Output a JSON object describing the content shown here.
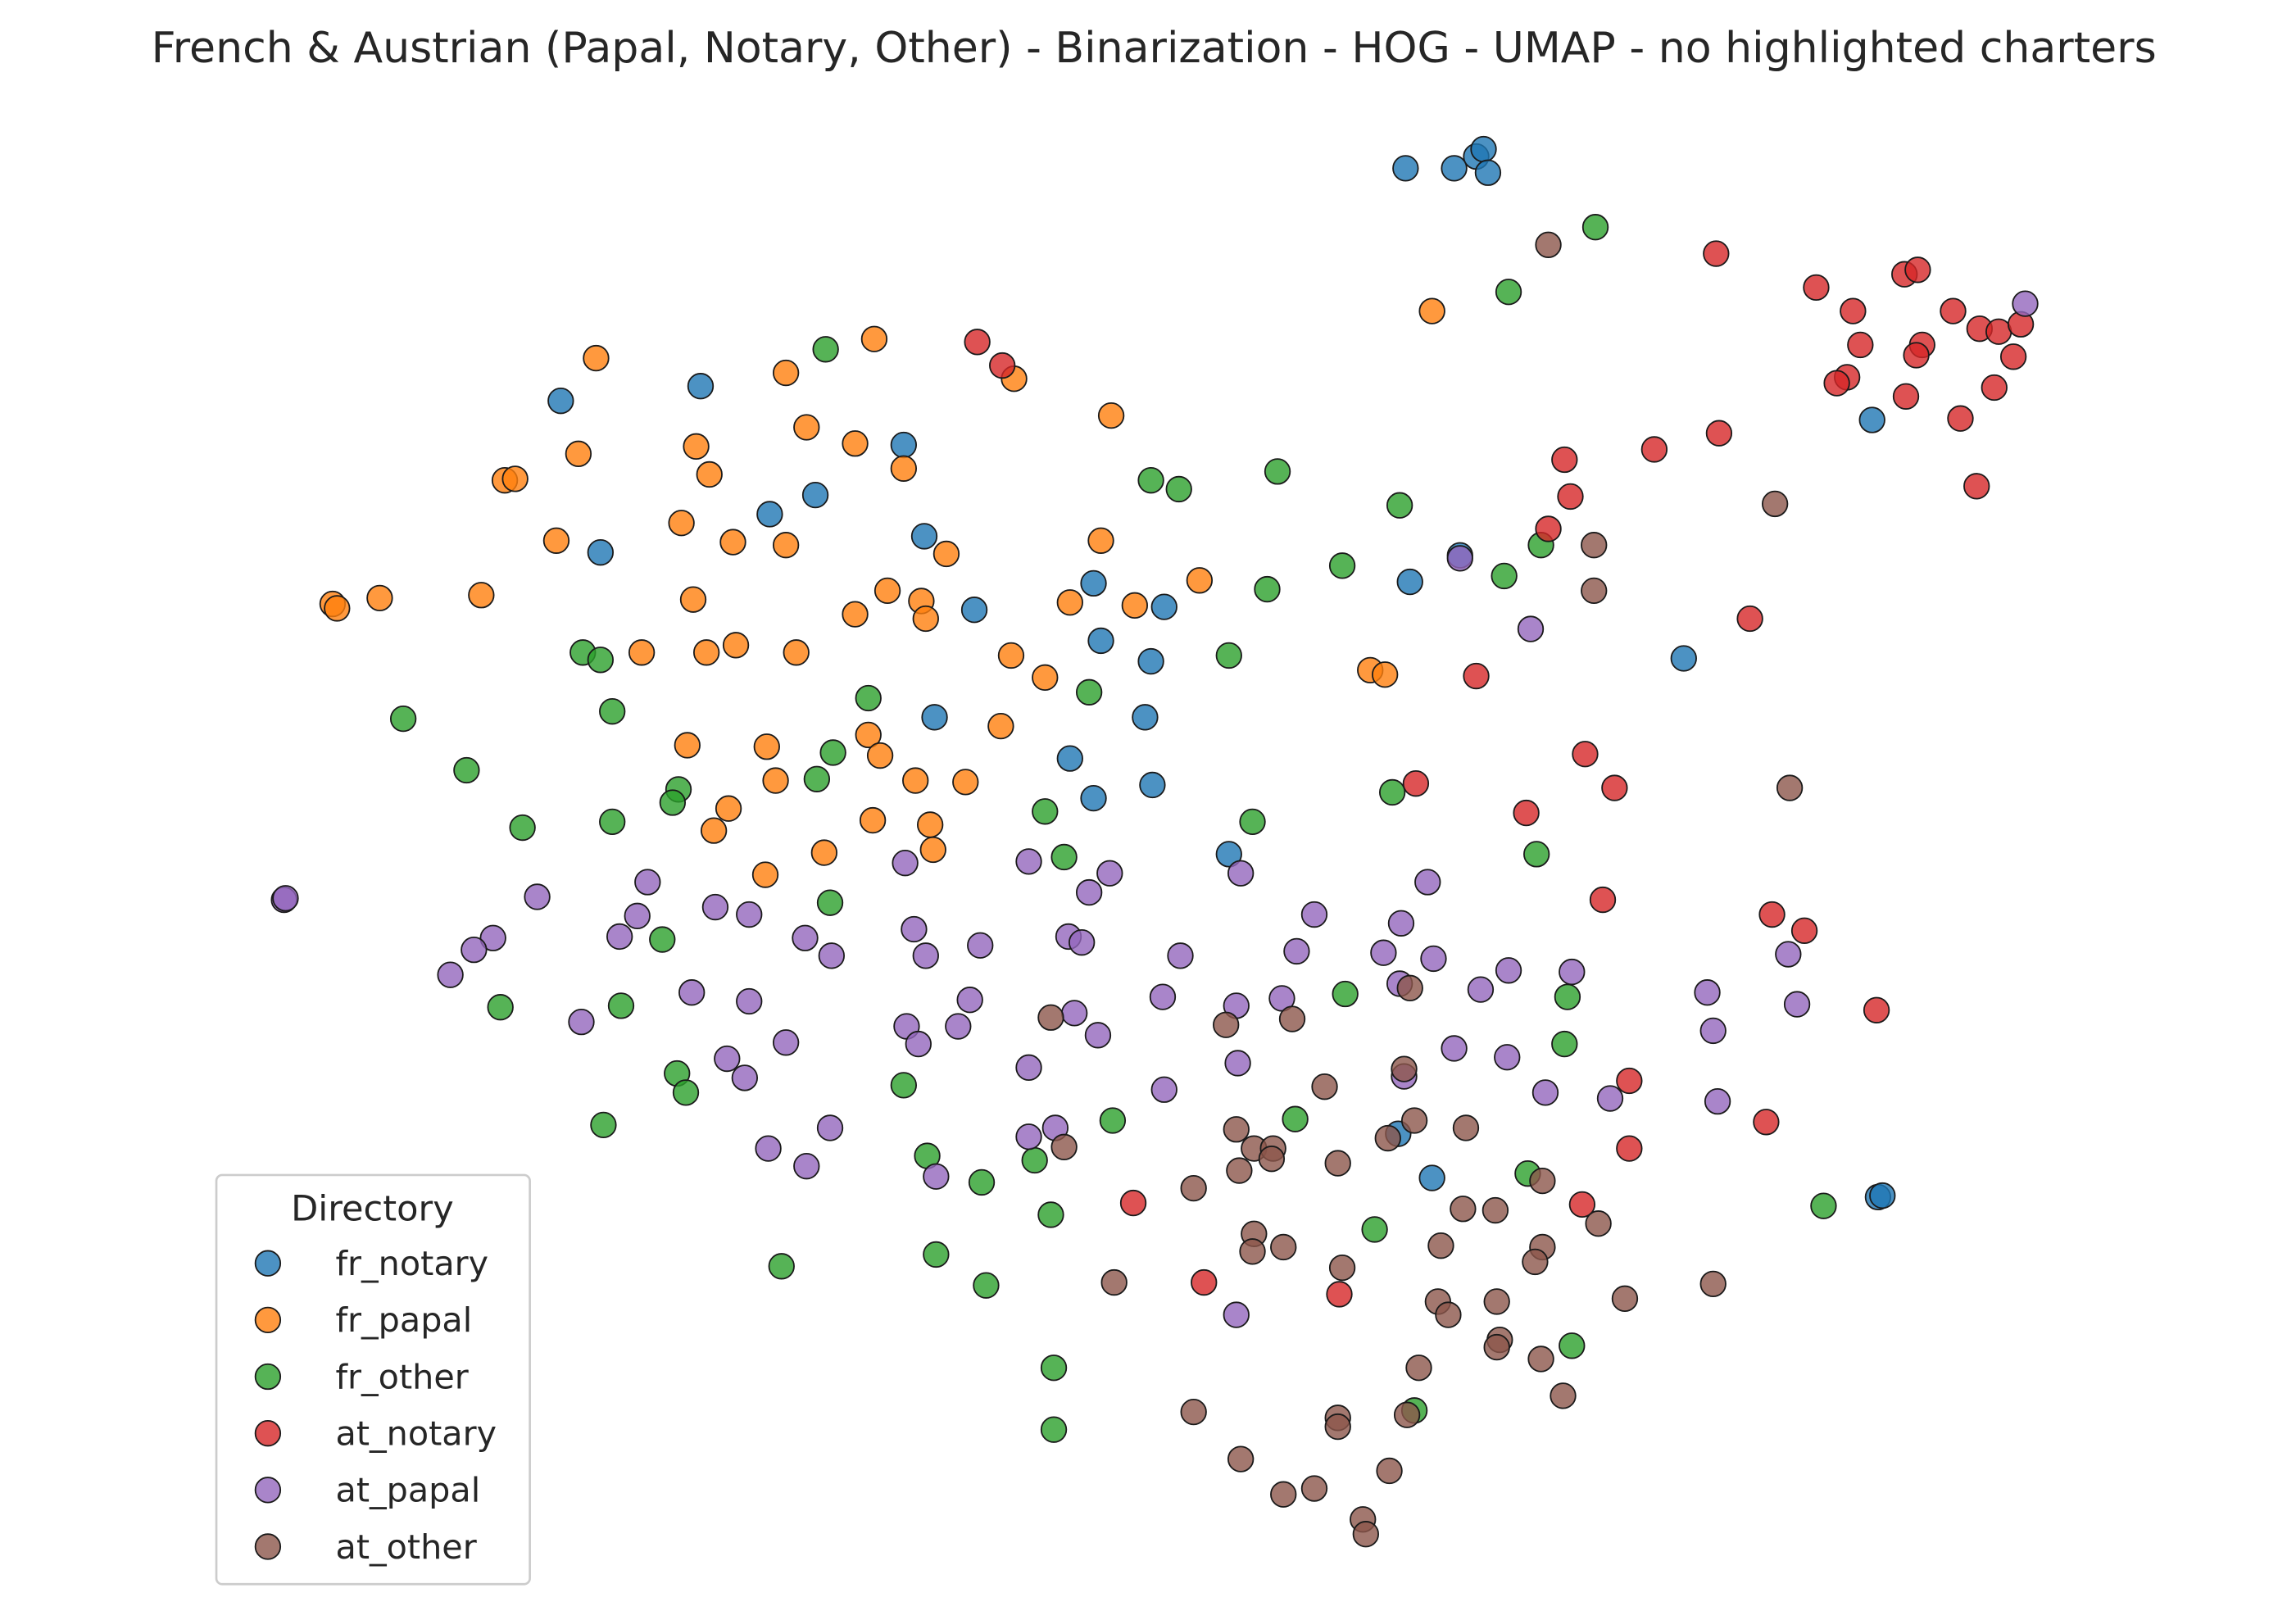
{
  "chart_data": {
    "type": "scatter",
    "title": "French & Austrian (Papal, Notary, Other) - Binarization - HOG - UMAP - no highlighted charters",
    "xlabel": "",
    "ylabel": "",
    "grid": false,
    "axes_visible": false,
    "legend": {
      "title": "Directory",
      "placement": "bottom-left"
    },
    "series": [
      {
        "name": "fr_notary",
        "color": "#1f77b4",
        "points": [
          [
            955,
            114
          ],
          [
            988,
            114
          ],
          [
            1003,
            106
          ],
          [
            1008,
            101
          ],
          [
            1011,
            117
          ],
          [
            476,
            262
          ],
          [
            381,
            272
          ],
          [
            614,
            302
          ],
          [
            554,
            336
          ],
          [
            523,
            349
          ],
          [
            408,
            375
          ],
          [
            628,
            364
          ],
          [
            662,
            414
          ],
          [
            743,
            396
          ],
          [
            791,
            412
          ],
          [
            748,
            435
          ],
          [
            782,
            449
          ],
          [
            958,
            395
          ],
          [
            992,
            377
          ],
          [
            1144,
            447
          ],
          [
            635,
            487
          ],
          [
            778,
            487
          ],
          [
            727,
            515
          ],
          [
            743,
            542
          ],
          [
            783,
            533
          ],
          [
            835,
            580
          ],
          [
            950,
            770
          ],
          [
            973,
            800
          ],
          [
            1272,
            285
          ],
          [
            1276,
            813
          ],
          [
            1279,
            812
          ]
        ]
      },
      {
        "name": "fr_papal",
        "color": "#ff7f0e",
        "points": [
          [
            594,
            230
          ],
          [
            534,
            253
          ],
          [
            405,
            243
          ],
          [
            689,
            257
          ],
          [
            755,
            282
          ],
          [
            548,
            290
          ],
          [
            581,
            301
          ],
          [
            473,
            303
          ],
          [
            393,
            308
          ],
          [
            614,
            318
          ],
          [
            482,
            322
          ],
          [
            343,
            326
          ],
          [
            350,
            325
          ],
          [
            463,
            355
          ],
          [
            498,
            368
          ],
          [
            534,
            370
          ],
          [
            378,
            367
          ],
          [
            748,
            367
          ],
          [
            643,
            376
          ],
          [
            226,
            410
          ],
          [
            229,
            413
          ],
          [
            258,
            406
          ],
          [
            327,
            404
          ],
          [
            471,
            407
          ],
          [
            603,
            401
          ],
          [
            581,
            417
          ],
          [
            626,
            408
          ],
          [
            629,
            420
          ],
          [
            727,
            409
          ],
          [
            771,
            411
          ],
          [
            815,
            394
          ],
          [
            436,
            443
          ],
          [
            480,
            443
          ],
          [
            500,
            438
          ],
          [
            541,
            443
          ],
          [
            687,
            445
          ],
          [
            710,
            460
          ],
          [
            931,
            455
          ],
          [
            941,
            458
          ],
          [
            973,
            211
          ],
          [
            467,
            506
          ],
          [
            521,
            507
          ],
          [
            590,
            499
          ],
          [
            598,
            513
          ],
          [
            680,
            493
          ],
          [
            527,
            530
          ],
          [
            622,
            530
          ],
          [
            656,
            531
          ],
          [
            495,
            549
          ],
          [
            485,
            564
          ],
          [
            593,
            557
          ],
          [
            632,
            560
          ],
          [
            634,
            577
          ],
          [
            560,
            579
          ],
          [
            520,
            594
          ]
        ]
      },
      {
        "name": "fr_other",
        "color": "#2ca02c",
        "points": [
          [
            1084,
            154
          ],
          [
            1025,
            198
          ],
          [
            561,
            237
          ],
          [
            782,
            326
          ],
          [
            801,
            332
          ],
          [
            868,
            320
          ],
          [
            951,
            343
          ],
          [
            912,
            384
          ],
          [
            861,
            400
          ],
          [
            1022,
            391
          ],
          [
            1047,
            370
          ],
          [
            835,
            445
          ],
          [
            396,
            443
          ],
          [
            408,
            448
          ],
          [
            416,
            483
          ],
          [
            274,
            488
          ],
          [
            590,
            474
          ],
          [
            740,
            470
          ],
          [
            317,
            523
          ],
          [
            461,
            536
          ],
          [
            457,
            545
          ],
          [
            566,
            511
          ],
          [
            555,
            529
          ],
          [
            710,
            551
          ],
          [
            851,
            558
          ],
          [
            946,
            538
          ],
          [
            355,
            562
          ],
          [
            416,
            558
          ],
          [
            723,
            582
          ],
          [
            1044,
            580
          ],
          [
            564,
            613
          ],
          [
            450,
            638
          ],
          [
            340,
            684
          ],
          [
            422,
            683
          ],
          [
            914,
            675
          ],
          [
            1065,
            677
          ],
          [
            460,
            729
          ],
          [
            466,
            742
          ],
          [
            614,
            737
          ],
          [
            1063,
            709
          ],
          [
            880,
            760
          ],
          [
            756,
            761
          ],
          [
            410,
            764
          ],
          [
            630,
            785
          ],
          [
            703,
            788
          ],
          [
            667,
            803
          ],
          [
            714,
            825
          ],
          [
            1038,
            797
          ],
          [
            934,
            835
          ],
          [
            1239,
            819
          ],
          [
            531,
            860
          ],
          [
            636,
            852
          ],
          [
            670,
            873
          ],
          [
            1068,
            914
          ],
          [
            716,
            929
          ],
          [
            961,
            958
          ],
          [
            716,
            971
          ]
        ]
      },
      {
        "name": "at_notary",
        "color": "#d62728",
        "points": [
          [
            664,
            232
          ],
          [
            681,
            248
          ],
          [
            1166,
            172
          ],
          [
            1234,
            195
          ],
          [
            1259,
            211
          ],
          [
            1294,
            186
          ],
          [
            1303,
            183
          ],
          [
            1327,
            211
          ],
          [
            1264,
            234
          ],
          [
            1306,
            234
          ],
          [
            1302,
            241
          ],
          [
            1345,
            223
          ],
          [
            1358,
            225
          ],
          [
            1373,
            220
          ],
          [
            1368,
            242
          ],
          [
            1355,
            263
          ],
          [
            1255,
            256
          ],
          [
            1248,
            260
          ],
          [
            1295,
            269
          ],
          [
            1332,
            284
          ],
          [
            1124,
            305
          ],
          [
            1168,
            294
          ],
          [
            1063,
            312
          ],
          [
            1067,
            337
          ],
          [
            1052,
            359
          ],
          [
            1343,
            330
          ],
          [
            1189,
            420
          ],
          [
            1003,
            459
          ],
          [
            962,
            532
          ],
          [
            1077,
            512
          ],
          [
            1097,
            535
          ],
          [
            1037,
            552
          ],
          [
            1089,
            611
          ],
          [
            1204,
            621
          ],
          [
            1226,
            632
          ],
          [
            1275,
            686
          ],
          [
            1107,
            734
          ],
          [
            1200,
            762
          ],
          [
            1107,
            780
          ],
          [
            1075,
            818
          ],
          [
            770,
            817
          ],
          [
            818,
            871
          ],
          [
            910,
            879
          ]
        ]
      },
      {
        "name": "at_papal",
        "color": "#9467bd",
        "points": [
          [
            1376,
            206
          ],
          [
            992,
            379
          ],
          [
            1040,
            427
          ],
          [
            193,
            611
          ],
          [
            194,
            610
          ],
          [
            365,
            609
          ],
          [
            440,
            599
          ],
          [
            615,
            586
          ],
          [
            699,
            585
          ],
          [
            754,
            593
          ],
          [
            740,
            606
          ],
          [
            843,
            593
          ],
          [
            970,
            599
          ],
          [
            433,
            622
          ],
          [
            486,
            616
          ],
          [
            509,
            621
          ],
          [
            421,
            636
          ],
          [
            335,
            637
          ],
          [
            322,
            645
          ],
          [
            547,
            637
          ],
          [
            565,
            649
          ],
          [
            621,
            631
          ],
          [
            629,
            649
          ],
          [
            666,
            642
          ],
          [
            726,
            636
          ],
          [
            735,
            640
          ],
          [
            802,
            649
          ],
          [
            881,
            646
          ],
          [
            893,
            621
          ],
          [
            952,
            627
          ],
          [
            940,
            647
          ],
          [
            974,
            651
          ],
          [
            1025,
            659
          ],
          [
            1068,
            660
          ],
          [
            1215,
            648
          ],
          [
            306,
            662
          ],
          [
            470,
            674
          ],
          [
            509,
            680
          ],
          [
            659,
            679
          ],
          [
            790,
            677
          ],
          [
            840,
            683
          ],
          [
            871,
            678
          ],
          [
            951,
            668
          ],
          [
            1006,
            672
          ],
          [
            1160,
            674
          ],
          [
            1221,
            682
          ],
          [
            395,
            694
          ],
          [
            534,
            708
          ],
          [
            616,
            697
          ],
          [
            624,
            709
          ],
          [
            651,
            697
          ],
          [
            730,
            688
          ],
          [
            746,
            703
          ],
          [
            699,
            725
          ],
          [
            841,
            722
          ],
          [
            988,
            712
          ],
          [
            1024,
            718
          ],
          [
            1164,
            700
          ],
          [
            494,
            719
          ],
          [
            506,
            732
          ],
          [
            791,
            740
          ],
          [
            954,
            731
          ],
          [
            1050,
            742
          ],
          [
            1094,
            746
          ],
          [
            1167,
            748
          ],
          [
            522,
            780
          ],
          [
            548,
            792
          ],
          [
            564,
            766
          ],
          [
            636,
            799
          ],
          [
            699,
            772
          ],
          [
            717,
            766
          ],
          [
            840,
            893
          ]
        ]
      },
      {
        "name": "at_other",
        "color": "#8c564b",
        "points": [
          [
            1052,
            166
          ],
          [
            1206,
            342
          ],
          [
            1083,
            370
          ],
          [
            1083,
            401
          ],
          [
            1216,
            535
          ],
          [
            714,
            691
          ],
          [
            833,
            696
          ],
          [
            878,
            692
          ],
          [
            954,
            726
          ],
          [
            958,
            671
          ],
          [
            900,
            738
          ],
          [
            840,
            767
          ],
          [
            852,
            780
          ],
          [
            865,
            780
          ],
          [
            864,
            787
          ],
          [
            943,
            773
          ],
          [
            961,
            761
          ],
          [
            996,
            766
          ],
          [
            723,
            779
          ],
          [
            909,
            790
          ],
          [
            842,
            795
          ],
          [
            811,
            807
          ],
          [
            1048,
            802
          ],
          [
            994,
            821
          ],
          [
            1016,
            822
          ],
          [
            1086,
            831
          ],
          [
            852,
            838
          ],
          [
            851,
            850
          ],
          [
            872,
            847
          ],
          [
            979,
            846
          ],
          [
            912,
            861
          ],
          [
            1048,
            847
          ],
          [
            1043,
            857
          ],
          [
            757,
            871
          ],
          [
            1164,
            872
          ],
          [
            977,
            884
          ],
          [
            984,
            893
          ],
          [
            1017,
            884
          ],
          [
            1104,
            882
          ],
          [
            1019,
            910
          ],
          [
            1017,
            915
          ],
          [
            1047,
            923
          ],
          [
            964,
            929
          ],
          [
            1062,
            948
          ],
          [
            811,
            959
          ],
          [
            956,
            961
          ],
          [
            909,
            963
          ],
          [
            909,
            969
          ],
          [
            843,
            991
          ],
          [
            944,
            999
          ],
          [
            872,
            1015
          ],
          [
            893,
            1011
          ],
          [
            926,
            1032
          ],
          [
            928,
            1042
          ]
        ]
      }
    ]
  }
}
